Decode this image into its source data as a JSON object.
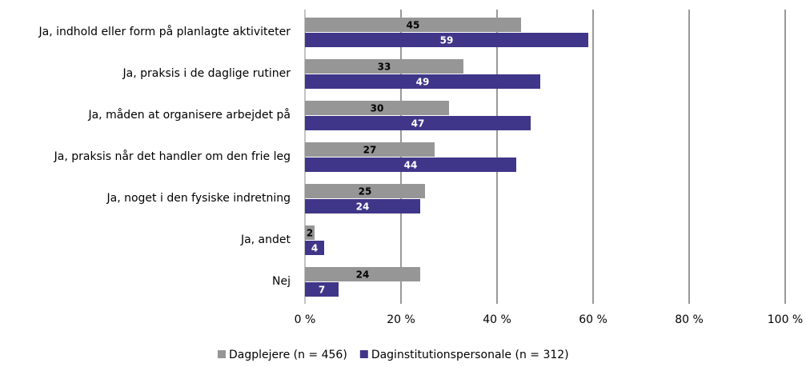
{
  "chart_data": {
    "type": "hbar",
    "categories": [
      "Ja, indhold eller form på planlagte aktiviteter",
      "Ja, praksis i de daglige rutiner",
      "Ja, måden at organisere arbejdet på",
      "Ja, praksis når det handler om den frie leg",
      "Ja, noget i den fysiske indretning",
      "Ja, andet",
      "Nej"
    ],
    "series": [
      {
        "name": "Dagplejere (n = 456)",
        "color": "#969696",
        "values": [
          45,
          33,
          30,
          27,
          25,
          2,
          24
        ]
      },
      {
        "name": "Daginstitutionspersonale (n = 312)",
        "color": "#3f3689",
        "values": [
          59,
          49,
          47,
          44,
          24,
          4,
          7
        ]
      }
    ],
    "xlim": [
      0,
      100
    ],
    "xticks": [
      {
        "value": 0,
        "label": "0 %"
      },
      {
        "value": 20,
        "label": "20 %"
      },
      {
        "value": 40,
        "label": "40 %"
      },
      {
        "value": 60,
        "label": "60 %"
      },
      {
        "value": 80,
        "label": "80 %"
      },
      {
        "value": 100,
        "label": "100 %"
      }
    ],
    "grid": true,
    "legend": "bottom"
  }
}
